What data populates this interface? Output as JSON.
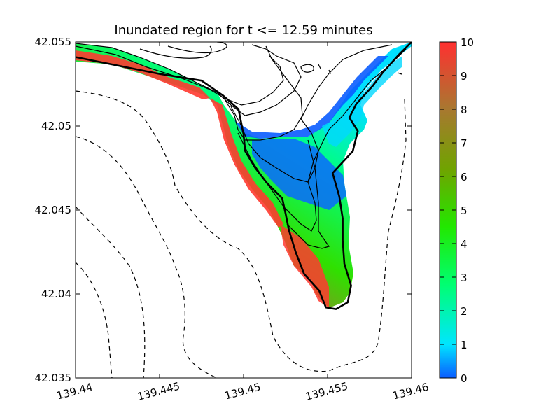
{
  "chart_data": {
    "type": "heatmap",
    "title": "Inundated region for t <= 12.59 minutes",
    "xlabel": "",
    "ylabel": "",
    "xlim": [
      139.44,
      139.46
    ],
    "ylim": [
      42.035,
      42.055
    ],
    "x_ticks": [
      "139.44",
      "139.445",
      "139.45",
      "139.455",
      "139.46"
    ],
    "y_ticks": [
      "42.035",
      "42.04",
      "42.045",
      "42.05",
      "42.055"
    ],
    "colorbar": {
      "range": [
        0,
        10
      ],
      "ticks": [
        "0",
        "1",
        "2",
        "3",
        "4",
        "5",
        "6",
        "7",
        "8",
        "9",
        "10"
      ],
      "colors": [
        "#0a5cff",
        "#00e6ff",
        "#00ff70",
        "#22e800",
        "#6fa400",
        "#a87830",
        "#ff3030"
      ]
    },
    "shoreline": [
      [
        139.44,
        42.0541
      ],
      [
        139.4425,
        42.0536
      ],
      [
        139.445,
        42.0531
      ],
      [
        139.4475,
        42.0527
      ],
      [
        139.4488,
        42.0518
      ],
      [
        139.4497,
        42.051
      ],
      [
        139.45,
        42.0495
      ],
      [
        139.4501,
        42.0485
      ],
      [
        139.4507,
        42.0475
      ],
      [
        139.4514,
        42.0466
      ],
      [
        139.4523,
        42.0457
      ],
      [
        139.4525,
        42.0448
      ],
      [
        139.4527,
        42.0438
      ],
      [
        139.4531,
        42.0425
      ],
      [
        139.4536,
        42.0412
      ],
      [
        139.4545,
        42.0402
      ],
      [
        139.4549,
        42.0392
      ],
      [
        139.4555,
        42.0391
      ],
      [
        139.4562,
        42.0395
      ],
      [
        139.4564,
        42.0405
      ],
      [
        139.456,
        42.0418
      ],
      [
        139.4559,
        42.0432
      ],
      [
        139.4559,
        42.0445
      ],
      [
        139.4557,
        42.0458
      ],
      [
        139.4553,
        42.0472
      ],
      [
        139.4565,
        42.0485
      ],
      [
        139.4568,
        42.0497
      ],
      [
        139.4563,
        42.0505
      ],
      [
        139.4567,
        42.0513
      ],
      [
        139.4577,
        42.0524
      ],
      [
        139.4583,
        42.0532
      ],
      [
        139.4592,
        42.0542
      ],
      [
        139.46,
        42.055
      ]
    ],
    "inundation_zone": {
      "value_range": [
        0,
        10
      ],
      "max_depth_area": "southern tip near (139.454, 42.041)",
      "shallow_area": "northern interior near (139.453, 42.047)"
    }
  }
}
